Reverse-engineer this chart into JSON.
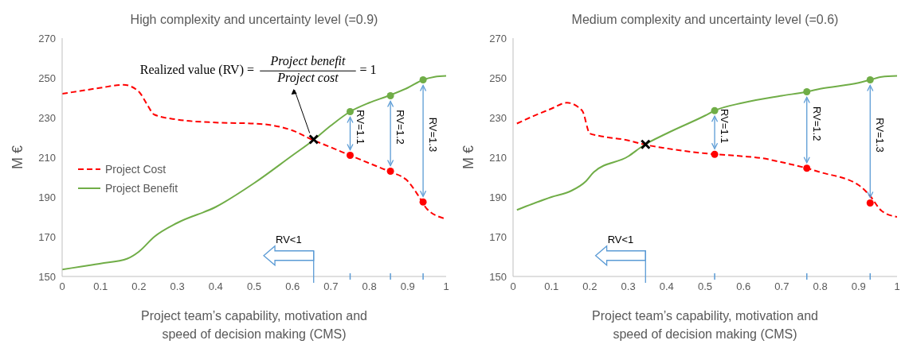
{
  "chart_data": [
    {
      "type": "line",
      "title": "High complexity and uncertainty level (=0.9)",
      "xlabel": "Project team’s capability, motivation and\nspeed of decision making (CMS)",
      "ylabel": "M €",
      "xlim": [
        0,
        1
      ],
      "xticks": [
        0,
        0.1,
        0.2,
        0.3,
        0.4,
        0.5,
        0.6,
        0.7,
        0.8,
        0.9,
        1
      ],
      "ylim": [
        150,
        270
      ],
      "yticks": [
        150,
        170,
        190,
        210,
        230,
        250,
        270
      ],
      "legend": "left",
      "series": [
        {
          "name": "Project Cost",
          "type": "line",
          "color": "#ff0000",
          "line_style": "dashed",
          "marker": "none",
          "x": [
            0,
            0.05,
            0.1,
            0.16,
            0.2,
            0.22,
            0.24,
            0.3,
            0.4,
            0.5,
            0.55,
            0.6,
            0.65,
            0.7,
            0.75,
            0.8,
            0.85,
            0.9,
            0.93,
            0.95,
            1
          ],
          "values": [
            242,
            243.5,
            245,
            246.5,
            243,
            237,
            231.5,
            229,
            227.5,
            227,
            226,
            223.5,
            219,
            215,
            211,
            207,
            203,
            198,
            190,
            184,
            179
          ]
        },
        {
          "name": "Project Benefit",
          "type": "line",
          "color": "#70ad47",
          "line_style": "solid",
          "marker": "none",
          "x": [
            0,
            0.05,
            0.1,
            0.17,
            0.2,
            0.24,
            0.3,
            0.4,
            0.5,
            0.6,
            0.65,
            0.7,
            0.75,
            0.8,
            0.85,
            0.9,
            0.94,
            0.97,
            1
          ],
          "values": [
            153.5,
            155,
            156.5,
            159,
            162.5,
            170,
            177,
            185,
            197,
            211,
            218,
            226,
            233,
            237.5,
            241,
            245,
            249,
            250.5,
            251
          ]
        },
        {
          "type": "scatter",
          "color": "#70ad47",
          "marker": "circle",
          "x": [
            0.75,
            0.855,
            0.94
          ],
          "values": [
            233,
            241,
            249
          ]
        },
        {
          "type": "scatter",
          "color": "#ff0000",
          "marker": "circle",
          "x": [
            0.75,
            0.855,
            0.94
          ],
          "values": [
            211,
            203,
            187.5
          ]
        },
        {
          "type": "scatter",
          "color": "#000000",
          "marker": "cross",
          "x": [
            0.655
          ],
          "values": [
            219
          ]
        }
      ],
      "annotations": [
        "Realized value (RV) =",
        "Project benefit",
        "Project cost",
        "= 1",
        "RV=1.1",
        "RV=1.2",
        "RV=1.3",
        "RV<1"
      ]
    },
    {
      "type": "line",
      "title": "Medium complexity and uncertainty level (=0.6)",
      "xlabel": "Project team’s capability, motivation and\nspeed of decision making (CMS)",
      "ylabel": "M €",
      "xlim": [
        0,
        1
      ],
      "xticks": [
        0,
        0.1,
        0.2,
        0.3,
        0.4,
        0.5,
        0.6,
        0.7,
        0.8,
        0.9,
        1
      ],
      "ylim": [
        150,
        270
      ],
      "yticks": [
        150,
        170,
        190,
        210,
        230,
        250,
        270
      ],
      "series": [
        {
          "type": "line",
          "color": "#ff0000",
          "line_style": "dashed",
          "marker": "none",
          "x": [
            0.01,
            0.05,
            0.1,
            0.14,
            0.18,
            0.2,
            0.22,
            0.3,
            0.34,
            0.4,
            0.5,
            0.53,
            0.6,
            0.65,
            0.7,
            0.765,
            0.8,
            0.9,
            0.93,
            0.96,
            1
          ],
          "values": [
            227,
            230.5,
            234.5,
            237.5,
            233.5,
            222,
            221,
            218.5,
            216.5,
            214.5,
            212,
            211.5,
            210.5,
            209.5,
            207.5,
            204.5,
            202.5,
            196,
            190.5,
            183,
            180
          ]
        },
        {
          "type": "line",
          "color": "#70ad47",
          "line_style": "solid",
          "marker": "none",
          "x": [
            0.01,
            0.05,
            0.1,
            0.15,
            0.19,
            0.21,
            0.3,
            0.34,
            0.4,
            0.5,
            0.525,
            0.6,
            0.7,
            0.765,
            0.8,
            0.9,
            0.93,
            0.96,
            1
          ],
          "values": [
            183.5,
            186.5,
            190,
            193,
            198,
            202.5,
            210.5,
            216,
            222,
            231,
            233.5,
            237.5,
            241,
            243,
            244.5,
            247.5,
            249,
            250.5,
            251
          ]
        },
        {
          "type": "scatter",
          "color": "#70ad47",
          "marker": "circle",
          "x": [
            0.525,
            0.765,
            0.93
          ],
          "values": [
            233.5,
            243,
            249
          ]
        },
        {
          "type": "scatter",
          "color": "#ff0000",
          "marker": "circle",
          "x": [
            0.525,
            0.765,
            0.93
          ],
          "values": [
            211.5,
            204.5,
            187
          ]
        },
        {
          "type": "scatter",
          "color": "#000000",
          "marker": "cross",
          "x": [
            0.345
          ],
          "values": [
            216.5
          ]
        }
      ],
      "annotations": [
        "RV=1.1",
        "RV=1.2",
        "RV=1.3",
        "RV<1"
      ]
    }
  ]
}
